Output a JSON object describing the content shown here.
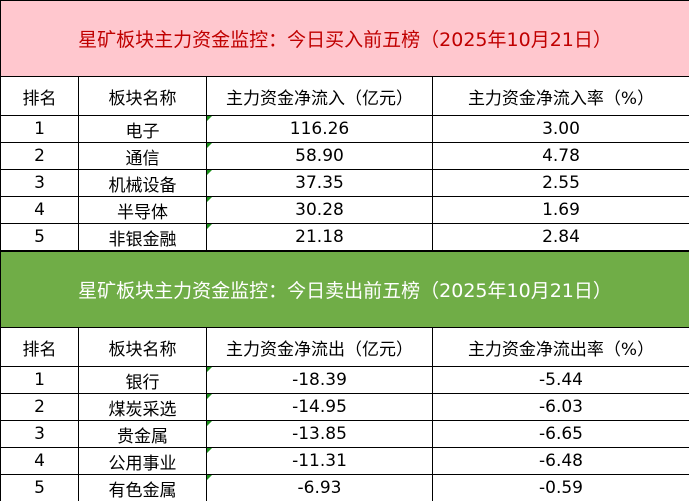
{
  "buy": {
    "title": "星矿板块主力资金监控：今日买入前五榜（2025年10月21日）",
    "headers": [
      "排名",
      "板块名称",
      "主力资金净流入（亿元）",
      "主力资金净流入率（%）"
    ],
    "rows": [
      [
        "1",
        "电子",
        "116.26",
        "3.00"
      ],
      [
        "2",
        "通信",
        "58.90",
        "4.78"
      ],
      [
        "3",
        "机械设备",
        "37.35",
        "2.55"
      ],
      [
        "4",
        "半导体",
        "30.28",
        "1.69"
      ],
      [
        "5",
        "非银金融",
        "21.18",
        "2.84"
      ]
    ]
  },
  "sell": {
    "title": "星矿板块主力资金监控：今日卖出前五榜（2025年10月21日）",
    "headers": [
      "排名",
      "板块名称",
      "主力资金净流出（亿元）",
      "主力资金净流出率（%）"
    ],
    "rows": [
      [
        "1",
        "银行",
        "-18.39",
        "-5.44"
      ],
      [
        "2",
        "煤炭采选",
        "-14.95",
        "-6.03"
      ],
      [
        "3",
        "贵金属",
        "-13.85",
        "-6.65"
      ],
      [
        "4",
        "公用事业",
        "-11.31",
        "-6.48"
      ],
      [
        "5",
        "有色金属",
        "-6.93",
        "-0.59"
      ]
    ]
  }
}
